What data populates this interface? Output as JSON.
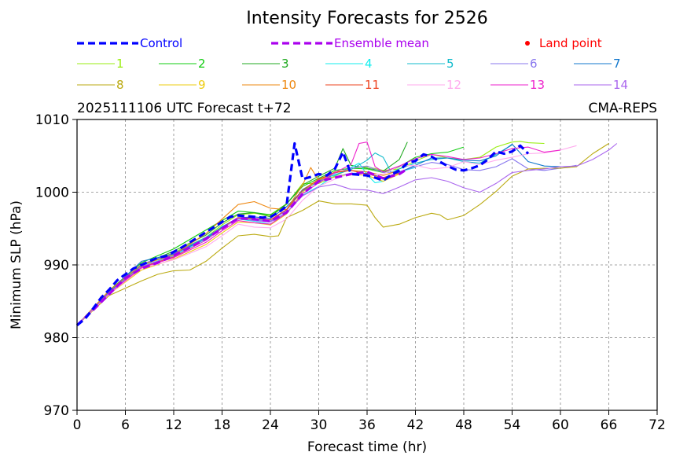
{
  "chart_data": {
    "type": "line",
    "title": "Intensity Forecasts for 2526",
    "subtitle_left": "2025111106 UTC Forecast t+72",
    "subtitle_right": "CMA-REPS",
    "xlabel": "Forecast time (hr)",
    "ylabel": "Minimum SLP (hPa)",
    "xlim": [
      0,
      72
    ],
    "ylim": [
      970,
      1010
    ],
    "xticks": [
      0,
      6,
      12,
      18,
      24,
      30,
      36,
      42,
      48,
      54,
      60,
      66,
      72
    ],
    "yticks": [
      970,
      980,
      990,
      1000,
      1010
    ],
    "grid": true,
    "land_point_label": "Land point",
    "land_point_color": "#ff0000",
    "series": [
      {
        "name": "Control",
        "role": "control",
        "color": "#0000ff",
        "dashed": true,
        "x": [
          0,
          1,
          2,
          3,
          4,
          5,
          6,
          7,
          8,
          9,
          10,
          11,
          12,
          13,
          14,
          15,
          16,
          17,
          18,
          19,
          20,
          21,
          22,
          23,
          24,
          25,
          26,
          27,
          28,
          29,
          30,
          31,
          32,
          33,
          34,
          35,
          36,
          37,
          38,
          39,
          40,
          41,
          42,
          43,
          44,
          45,
          46,
          47,
          48,
          49,
          50,
          51,
          52,
          53,
          54,
          55,
          56
        ],
        "y": [
          981.7,
          982.6,
          984,
          985.5,
          986.6,
          987.9,
          988.7,
          989.5,
          990,
          990.5,
          991,
          991.2,
          991.8,
          992.4,
          993.1,
          993.8,
          994.5,
          995.2,
          995.9,
          996.6,
          996.8,
          996.7,
          996.6,
          996.5,
          996.6,
          997.2,
          998.1,
          1006.7,
          1001.8,
          1002.1,
          1002.5,
          1002.3,
          1003.2,
          1005.5,
          1002.5,
          1002.4,
          1002.3,
          1002,
          1001.6,
          1002.4,
          1003,
          1004,
          1004.3,
          1005.2,
          1004.9,
          1004.2,
          1003.6,
          1003.1,
          1003,
          1003.3,
          1003.7,
          1004.5,
          1005.6,
          1005.3,
          1005.6,
          1006.4,
          1005.3
        ]
      },
      {
        "name": "Ensemble mean",
        "role": "mean",
        "color": "#aa00ee",
        "dashed": true,
        "x": [
          0,
          2,
          4,
          6,
          8,
          10,
          12,
          14,
          16,
          18,
          20,
          22,
          24,
          26,
          28,
          30,
          32,
          34,
          36,
          38,
          40,
          41
        ],
        "y": [
          981.7,
          983.8,
          986,
          988.2,
          989.5,
          990.3,
          991.3,
          992.4,
          993.6,
          995,
          996.4,
          996.3,
          996,
          997.2,
          999.8,
          1001.5,
          1002,
          1002.5,
          1002.8,
          1001.9,
          1002.5,
          1003.2
        ]
      },
      {
        "name": "1",
        "color": "#99ee11",
        "x": [
          0,
          4,
          8,
          12,
          16,
          18,
          20,
          22,
          24,
          26,
          28,
          30,
          32,
          34,
          36,
          38,
          40,
          42,
          44,
          46,
          48,
          50,
          52,
          54,
          55,
          56,
          58
        ],
        "y": [
          981.7,
          986.3,
          990,
          991.7,
          993.8,
          995.5,
          996.9,
          997.1,
          996.8,
          998.3,
          1001.2,
          1001.2,
          1002.2,
          1003.3,
          1003.5,
          1003,
          1003.2,
          1004.3,
          1005.2,
          1004.7,
          1004.5,
          1004.8,
          1006.2,
          1006.9,
          1007,
          1006.8,
          1006.7
        ]
      },
      {
        "name": "2",
        "color": "#11cc11",
        "x": [
          0,
          4,
          8,
          12,
          16,
          18,
          20,
          22,
          24,
          26,
          28,
          30,
          32,
          34,
          36,
          38,
          40,
          42,
          44,
          46,
          48
        ],
        "y": [
          981.7,
          986.5,
          990.3,
          992.2,
          994.8,
          996.1,
          997.4,
          997.2,
          996.9,
          998.4,
          1000.8,
          1001.9,
          1003,
          1003.3,
          1003.2,
          1002.7,
          1003.5,
          1004.8,
          1005.3,
          1005.5,
          1006.2
        ]
      },
      {
        "name": "3",
        "color": "#22aa22",
        "x": [
          0,
          4,
          8,
          12,
          16,
          18,
          20,
          22,
          24,
          26,
          28,
          30,
          32,
          33,
          34,
          36,
          38,
          40,
          41
        ],
        "y": [
          981.7,
          986.4,
          990,
          991.9,
          994.1,
          995.8,
          997,
          997.2,
          996.6,
          998.4,
          1001,
          1002.2,
          1003.3,
          1006,
          1003.7,
          1003.3,
          1002.9,
          1004.5,
          1006.9
        ]
      },
      {
        "name": "4",
        "color": "#11eeee",
        "x": [
          0,
          4,
          8,
          12,
          16,
          18,
          20,
          22,
          24,
          26,
          28,
          30,
          32,
          34,
          35,
          36,
          37,
          38,
          39,
          40,
          42
        ],
        "y": [
          981.7,
          986.2,
          989.8,
          991.3,
          993.6,
          995.3,
          996.3,
          996,
          995.6,
          997.2,
          999.6,
          1000.8,
          1002.3,
          1003.4,
          1004,
          1002.4,
          1001.3,
          1001.5,
          1002.2,
          1002.8,
          1003.4
        ]
      },
      {
        "name": "5",
        "color": "#11bbcc",
        "x": [
          0,
          4,
          8,
          12,
          16,
          18,
          20,
          22,
          24,
          26,
          28,
          30,
          32,
          34,
          36,
          37,
          38,
          39,
          40,
          42,
          44,
          46,
          48,
          50,
          52,
          54
        ],
        "y": [
          981.7,
          986.3,
          989.9,
          991.6,
          993.8,
          995.2,
          996.5,
          996.3,
          996,
          997.6,
          1000.4,
          1001.6,
          1002.4,
          1003.1,
          1004.4,
          1005.4,
          1004.8,
          1002.7,
          1003.2,
          1004,
          1004.5,
          1004.7,
          1004.2,
          1004,
          1005.2,
          1006.5
        ]
      },
      {
        "name": "6",
        "color": "#8877ee",
        "x": [
          0,
          4,
          8,
          12,
          16,
          18,
          20,
          22,
          24,
          26,
          28,
          30,
          32,
          34,
          36,
          38,
          40,
          42,
          44,
          46,
          48,
          50,
          52,
          54,
          56,
          58,
          60,
          62
        ],
        "y": [
          981.7,
          986.4,
          990.1,
          991.6,
          993.6,
          995.1,
          996.3,
          996.2,
          996,
          997.5,
          1000.2,
          1001.7,
          1002.6,
          1003.3,
          1003.6,
          1002.7,
          1002.8,
          1003.5,
          1004.1,
          1003.8,
          1003.1,
          1003,
          1003.5,
          1004.6,
          1003.2,
          1003,
          1003.3,
          1003.7
        ]
      },
      {
        "name": "7",
        "color": "#1177cc",
        "x": [
          0,
          4,
          8,
          12,
          16,
          18,
          20,
          22,
          24,
          26,
          28,
          30,
          32,
          34,
          36,
          38,
          40,
          42,
          44,
          46,
          48,
          50,
          52,
          54,
          56,
          58,
          60
        ],
        "y": [
          981.7,
          986.3,
          990.5,
          991.5,
          993.6,
          995.2,
          996.5,
          996.6,
          996.4,
          998,
          1000.2,
          1001.5,
          1002.1,
          1002.6,
          1002.6,
          1002,
          1002.7,
          1003.7,
          1004.7,
          1004.7,
          1004.4,
          1004.3,
          1005,
          1006.6,
          1004.2,
          1003.6,
          1003.5
        ]
      },
      {
        "name": "8",
        "color": "#bbaa11",
        "x": [
          0,
          4,
          8,
          10,
          12,
          14,
          16,
          18,
          20,
          22,
          24,
          25,
          26,
          28,
          30,
          32,
          34,
          36,
          37,
          38,
          40,
          42,
          44,
          45,
          46,
          48,
          50,
          52,
          54,
          56,
          58,
          60,
          62,
          64,
          66
        ],
        "y": [
          981.7,
          985.8,
          987.8,
          988.7,
          989.2,
          989.3,
          990.5,
          992.3,
          994,
          994.2,
          993.9,
          994,
          996.5,
          997.5,
          998.8,
          998.4,
          998.4,
          998.2,
          996.5,
          995.2,
          995.6,
          996.5,
          997.1,
          996.9,
          996.2,
          996.8,
          998.3,
          1000.1,
          1002.2,
          1003.2,
          1003.3,
          1003.3,
          1003.5,
          1005.3,
          1006.7
        ]
      },
      {
        "name": "9",
        "color": "#eecc11",
        "x": [
          0,
          4,
          8,
          12,
          16,
          18,
          20,
          22,
          24,
          26,
          28,
          30,
          32,
          34,
          36,
          38,
          40
        ],
        "y": [
          981.7,
          986,
          989.3,
          990.8,
          992.8,
          994.4,
          995.9,
          995.8,
          995.5,
          997,
          1000,
          1001.8,
          1002.1,
          1002.5,
          1002.3,
          1001.5,
          1002.5
        ]
      },
      {
        "name": "10",
        "color": "#ee8811",
        "x": [
          0,
          4,
          8,
          12,
          16,
          18,
          20,
          22,
          24,
          26,
          28,
          29,
          30,
          32,
          34,
          36,
          38,
          40
        ],
        "y": [
          981.7,
          986.5,
          990,
          991.4,
          994.3,
          996.3,
          998.3,
          998.7,
          997.8,
          997.6,
          1001,
          1003.4,
          1001.6,
          1002.8,
          1003,
          1002.8,
          1002.3,
          1003
        ]
      },
      {
        "name": "11",
        "color": "#ee4422",
        "x": [
          0,
          4,
          8,
          12,
          16,
          18,
          20,
          22,
          24,
          26,
          28,
          30,
          32,
          34,
          36,
          38,
          40
        ],
        "y": [
          981.7,
          986.2,
          989.7,
          991.1,
          993.4,
          995.1,
          996.5,
          996.4,
          996.2,
          997.6,
          1000.3,
          1001.8,
          1002.7,
          1003,
          1002.5,
          1002,
          1002.6
        ]
      },
      {
        "name": "12",
        "color": "#ffaaee",
        "x": [
          0,
          4,
          8,
          12,
          16,
          18,
          20,
          22,
          24,
          26,
          28,
          30,
          32,
          34,
          36,
          38,
          40,
          42,
          44,
          46,
          48,
          50,
          52,
          54,
          56,
          58,
          60,
          62
        ],
        "y": [
          981.7,
          986,
          989.5,
          990.7,
          992.5,
          994,
          995.6,
          995.2,
          995.1,
          996.3,
          998.9,
          1000.8,
          1001.8,
          1002.6,
          1002.4,
          1002.5,
          1003.6,
          1003.7,
          1003.2,
          1003.4,
          1004.2,
          1003.8,
          1004.4,
          1004.8,
          1005.3,
          1005.4,
          1005.8,
          1006.4
        ]
      },
      {
        "name": "13",
        "color": "#ee22cc",
        "x": [
          0,
          4,
          8,
          12,
          16,
          18,
          20,
          22,
          24,
          26,
          28,
          30,
          32,
          34,
          35,
          36,
          37,
          38,
          40,
          42,
          44,
          46,
          48,
          50,
          52,
          54,
          56,
          58,
          60
        ],
        "y": [
          981.7,
          986.1,
          989.6,
          991,
          993.1,
          994.7,
          996.1,
          995.8,
          995.6,
          997.1,
          999.8,
          1001.3,
          1002.7,
          1003.8,
          1006.7,
          1006.9,
          1003.5,
          1002.8,
          1003.6,
          1004.6,
          1005.2,
          1004.9,
          1004.5,
          1004.7,
          1005.3,
          1006,
          1006.2,
          1005.5,
          1005.8
        ]
      },
      {
        "name": "14",
        "color": "#aa66ee",
        "x": [
          0,
          4,
          8,
          12,
          16,
          18,
          20,
          22,
          24,
          26,
          28,
          30,
          32,
          34,
          36,
          38,
          40,
          42,
          44,
          46,
          48,
          50,
          52,
          54,
          56,
          58,
          60,
          62,
          64,
          66,
          67
        ],
        "y": [
          981.7,
          986.2,
          989.8,
          991.2,
          993.4,
          995,
          996.4,
          996.1,
          995.9,
          997.2,
          999.5,
          1000.7,
          1001.1,
          1000.4,
          1000.3,
          999.8,
          1000.7,
          1001.7,
          1002,
          1001.5,
          1000.6,
          1000,
          1001.2,
          1002.7,
          1003,
          1003.2,
          1003.5,
          1003.6,
          1004.5,
          1005.8,
          1006.7
        ]
      }
    ]
  }
}
